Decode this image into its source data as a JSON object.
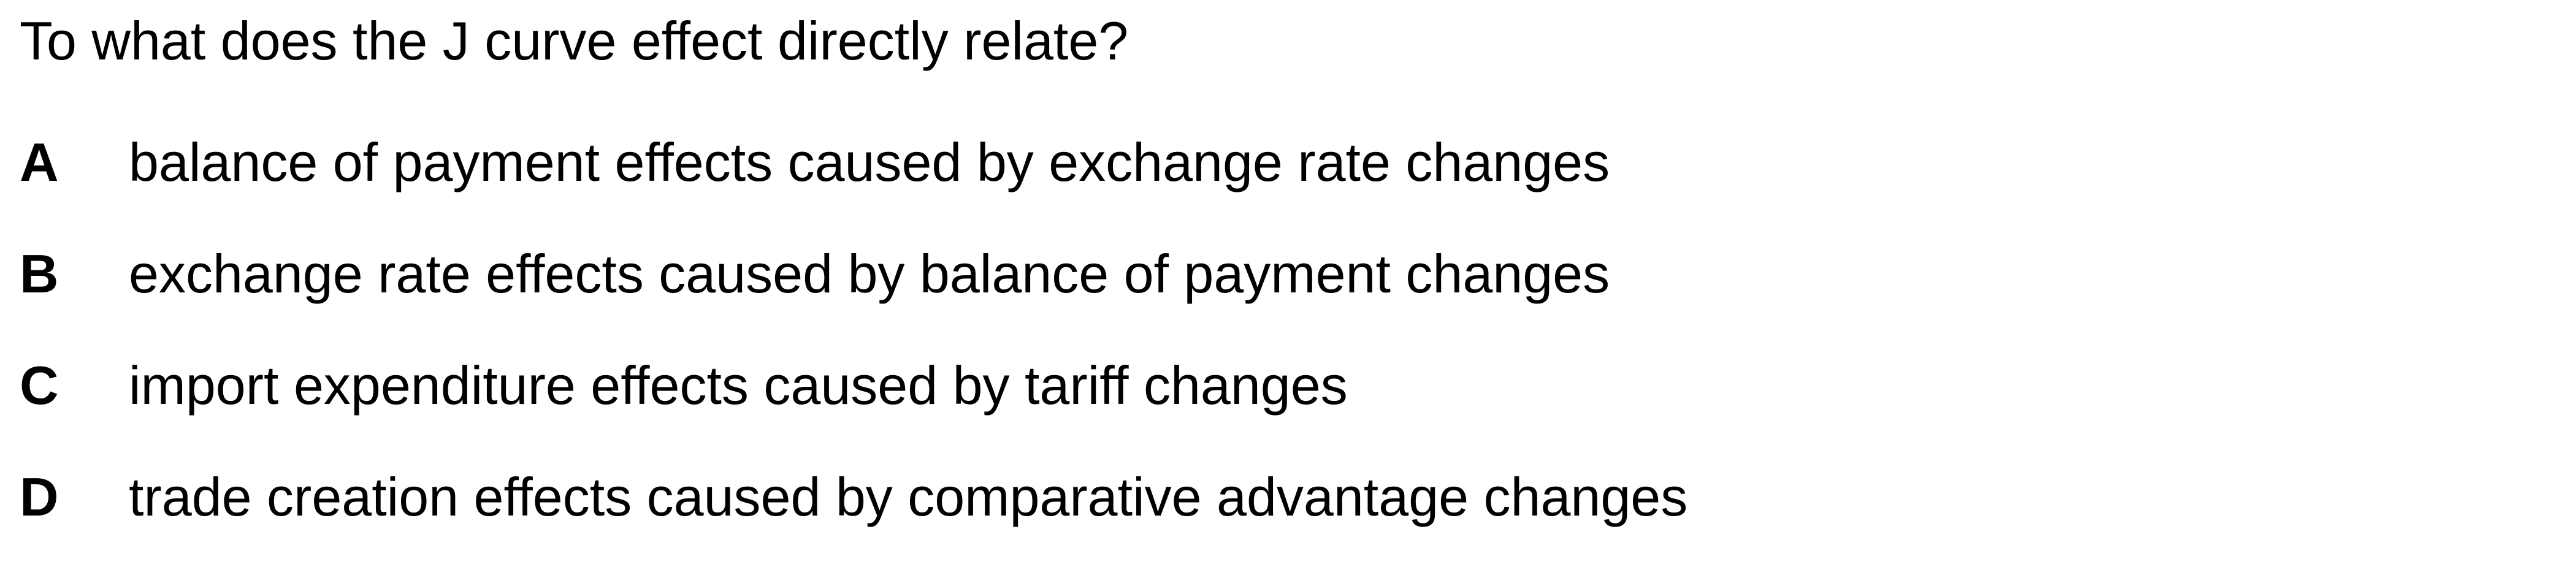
{
  "question": {
    "text": "To what does the J curve effect directly relate?"
  },
  "options": [
    {
      "letter": "A",
      "text": "balance of payment effects caused by exchange rate changes"
    },
    {
      "letter": "B",
      "text": "exchange rate effects caused by balance of payment changes"
    },
    {
      "letter": "C",
      "text": "import expenditure effects caused by tariff changes"
    },
    {
      "letter": "D",
      "text": "trade creation effects caused by comparative advantage changes"
    }
  ]
}
